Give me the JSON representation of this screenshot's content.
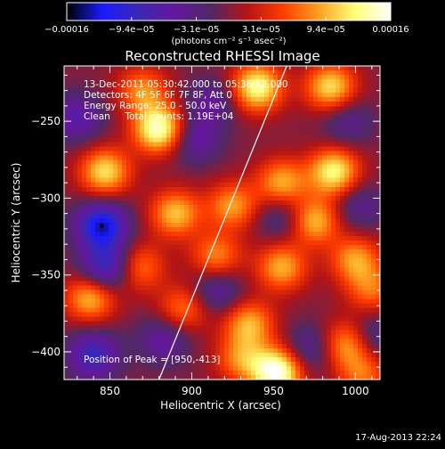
{
  "chart_data": {
    "type": "heatmap",
    "title": "Reconstructed RHESSI Image",
    "xlabel": "Heliocentric X (arcsec)",
    "ylabel": "Heliocentric Y (arcsec)",
    "xlim": [
      822,
      1015
    ],
    "ylim": [
      -418,
      -214
    ],
    "x_ticks": [
      850,
      900,
      950,
      1000
    ],
    "x_tick_labels": [
      "850",
      "900",
      "950",
      "1000"
    ],
    "y_ticks": [
      -250,
      -300,
      -350,
      -400
    ],
    "y_tick_labels": [
      "−250",
      "−300",
      "−350",
      "−400"
    ],
    "colorbar": {
      "range": [
        -0.00016,
        0.00016
      ],
      "tick_labels": [
        "−0.00016",
        "−9.4e−05",
        "−3.1e−05",
        "3.1e−05",
        "9.4e−05",
        "0.00016"
      ],
      "units": "(photons cm⁻² s⁻¹ asec⁻²)",
      "stops": [
        "#000000",
        "#1a1aff",
        "#3c28b4",
        "#64189c",
        "#502864",
        "#b41414",
        "#ff3c00",
        "#ffa01e",
        "#ffff78",
        "#ffffff"
      ]
    },
    "annotations": {
      "time": "13-Dec-2011 05:30:42.000 to 05:36:42.000",
      "detectors": "Detectors: 4F 5F 6F 7F 8F, Att 0",
      "energy": "Energy Range: 25.0 - 50.0 keV",
      "clean": "Clean     Total counts: 1.19E+04",
      "peak": "Position of Peak = [950,-413]"
    },
    "limb_line": {
      "x": [
        880,
        958
      ],
      "y": [
        -418,
        -214
      ]
    },
    "peak_position": [
      950,
      -413
    ],
    "sources": [
      {
        "x": 847,
        "y": -283,
        "v": 0.85
      },
      {
        "x": 870,
        "y": -230,
        "v": 0.6
      },
      {
        "x": 880,
        "y": -255,
        "v": 1.1
      },
      {
        "x": 940,
        "y": -228,
        "v": 1.0
      },
      {
        "x": 985,
        "y": -228,
        "v": 0.85
      },
      {
        "x": 955,
        "y": -290,
        "v": 0.7
      },
      {
        "x": 987,
        "y": -283,
        "v": 0.95
      },
      {
        "x": 890,
        "y": -310,
        "v": 0.75
      },
      {
        "x": 925,
        "y": -305,
        "v": 0.65
      },
      {
        "x": 975,
        "y": -315,
        "v": 0.75
      },
      {
        "x": 915,
        "y": -338,
        "v": 0.6
      },
      {
        "x": 955,
        "y": -345,
        "v": 0.7
      },
      {
        "x": 1000,
        "y": -340,
        "v": 0.65
      },
      {
        "x": 868,
        "y": -345,
        "v": 0.55
      },
      {
        "x": 838,
        "y": -365,
        "v": 0.75
      },
      {
        "x": 1010,
        "y": -360,
        "v": 0.5
      },
      {
        "x": 895,
        "y": -372,
        "v": 0.55
      },
      {
        "x": 935,
        "y": -382,
        "v": 0.7
      },
      {
        "x": 995,
        "y": -395,
        "v": 0.7
      },
      {
        "x": 930,
        "y": -405,
        "v": 0.55
      },
      {
        "x": 952,
        "y": -413,
        "v": 1.2
      },
      {
        "x": 1005,
        "y": -415,
        "v": 0.5
      },
      {
        "x": 845,
        "y": -318,
        "v": -1.0
      },
      {
        "x": 848,
        "y": -345,
        "v": -0.75
      },
      {
        "x": 840,
        "y": -402,
        "v": -0.7
      },
      {
        "x": 830,
        "y": -248,
        "v": -0.5
      },
      {
        "x": 902,
        "y": -262,
        "v": -0.45
      },
      {
        "x": 912,
        "y": -238,
        "v": -0.4
      },
      {
        "x": 915,
        "y": -360,
        "v": -0.45
      },
      {
        "x": 883,
        "y": -392,
        "v": -0.45
      },
      {
        "x": 955,
        "y": -312,
        "v": -0.35
      },
      {
        "x": 995,
        "y": -250,
        "v": -0.35
      },
      {
        "x": 1002,
        "y": -305,
        "v": -0.35
      },
      {
        "x": 972,
        "y": -398,
        "v": -0.4
      },
      {
        "x": 1010,
        "y": -390,
        "v": -0.4
      }
    ]
  },
  "footer_date": "17-Aug-2013 22:24"
}
